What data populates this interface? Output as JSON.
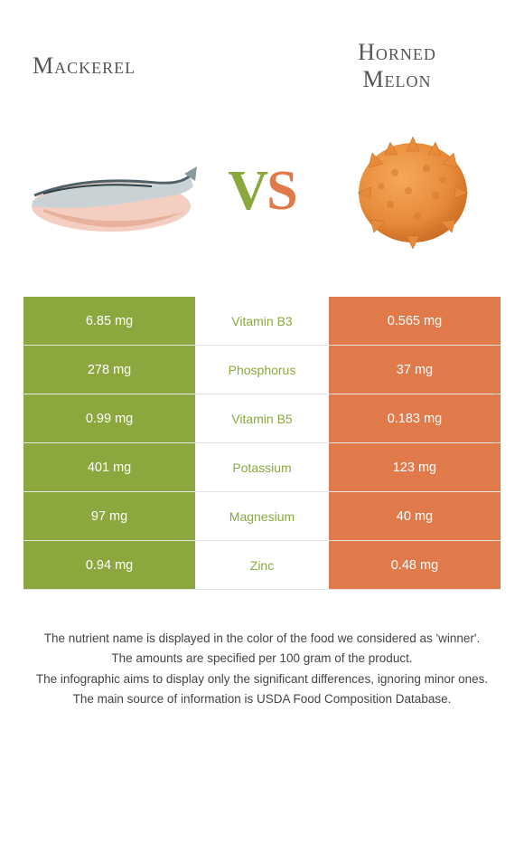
{
  "titles": {
    "left": "Mackerel",
    "right": "Horned\nMelon"
  },
  "vs": {
    "v": "V",
    "s": "S"
  },
  "colors": {
    "left_bg": "#8aa83e",
    "right_bg": "#e07a4a",
    "nutrient_text": "#8aa83e",
    "cell_text": "#ffffff",
    "border": "#e4e4e4",
    "title_text": "#555555"
  },
  "table": {
    "rows": [
      {
        "left": "6.85 mg",
        "nutrient": "Vitamin B3",
        "right": "0.565 mg"
      },
      {
        "left": "278 mg",
        "nutrient": "Phosphorus",
        "right": "37 mg"
      },
      {
        "left": "0.99 mg",
        "nutrient": "Vitamin B5",
        "right": "0.183 mg"
      },
      {
        "left": "401 mg",
        "nutrient": "Potassium",
        "right": "123 mg"
      },
      {
        "left": "97 mg",
        "nutrient": "Magnesium",
        "right": "40 mg"
      },
      {
        "left": "0.94 mg",
        "nutrient": "Zinc",
        "right": "0.48 mg"
      }
    ]
  },
  "footer": {
    "lines": [
      "The nutrient name is displayed in the color of the food we considered as 'winner'.",
      "The amounts are specified per 100 gram of the product.",
      "The infographic aims to display only the significant differences, ignoring minor ones.",
      "The main source of information is USDA Food Composition Database."
    ]
  }
}
